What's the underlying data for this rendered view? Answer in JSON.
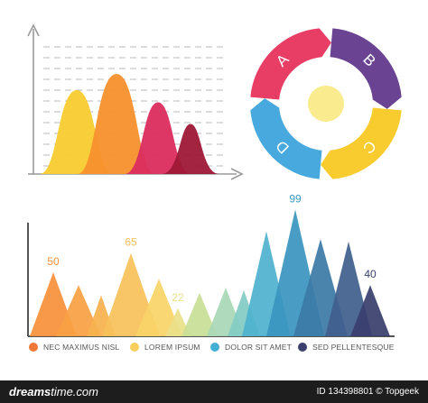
{
  "chart_data": [
    {
      "type": "area",
      "grid": true,
      "series": [
        {
          "color": "#f8cc2f",
          "value": 6.2
        },
        {
          "color": "#f7902c",
          "value": 7.4
        },
        {
          "color": "#db2c5e",
          "value": 5.3
        },
        {
          "color": "#9e1836",
          "value": 3.7
        }
      ]
    },
    {
      "type": "pie",
      "slices": [
        {
          "label": "A",
          "color": "#e83e66",
          "value": 25
        },
        {
          "label": "B",
          "color": "#6a4393",
          "value": 25
        },
        {
          "label": "C",
          "color": "#f8cc2f",
          "value": 25
        },
        {
          "label": "D",
          "color": "#47a9dd",
          "value": 25
        }
      ],
      "center_color": "#f9eb8e"
    },
    {
      "type": "area",
      "peaks": [
        {
          "value": 50,
          "label": "50",
          "color": "#f8913c"
        },
        {
          "value": 40,
          "color": "#f9a044"
        },
        {
          "value": 32,
          "color": "#f8b24f"
        },
        {
          "value": 65,
          "label": "65",
          "color": "#f8c15b"
        },
        {
          "value": 45,
          "color": "#f9d468"
        },
        {
          "value": 22,
          "label": "22",
          "color": "#e9e08a"
        },
        {
          "value": 34,
          "color": "#c8df97"
        },
        {
          "value": 38,
          "color": "#a9d8b7"
        },
        {
          "value": 36,
          "color": "#83cbc5"
        },
        {
          "value": 82,
          "color": "#4fb1cf"
        },
        {
          "value": 99,
          "label": "99",
          "color": "#3b96bf"
        },
        {
          "value": 76,
          "color": "#3c7ba7"
        },
        {
          "value": 74,
          "color": "#41608e"
        },
        {
          "value": 40,
          "label": "40",
          "color": "#3a3f6e"
        }
      ],
      "legend": [
        {
          "label": "NEC MAXIMUS NISL",
          "color": "#f0793a"
        },
        {
          "label": "LOREM IPSUM",
          "color": "#f8cf5c"
        },
        {
          "label": "DOLOR SIT AMET",
          "color": "#45aed5"
        },
        {
          "label": "SED PELLENTESQUE",
          "color": "#3b3f6c"
        }
      ]
    }
  ],
  "footer": {
    "brand_prefix": "dreams",
    "brand_suffix": "time.com",
    "meta": "ID 134398801 © Topgeek"
  }
}
